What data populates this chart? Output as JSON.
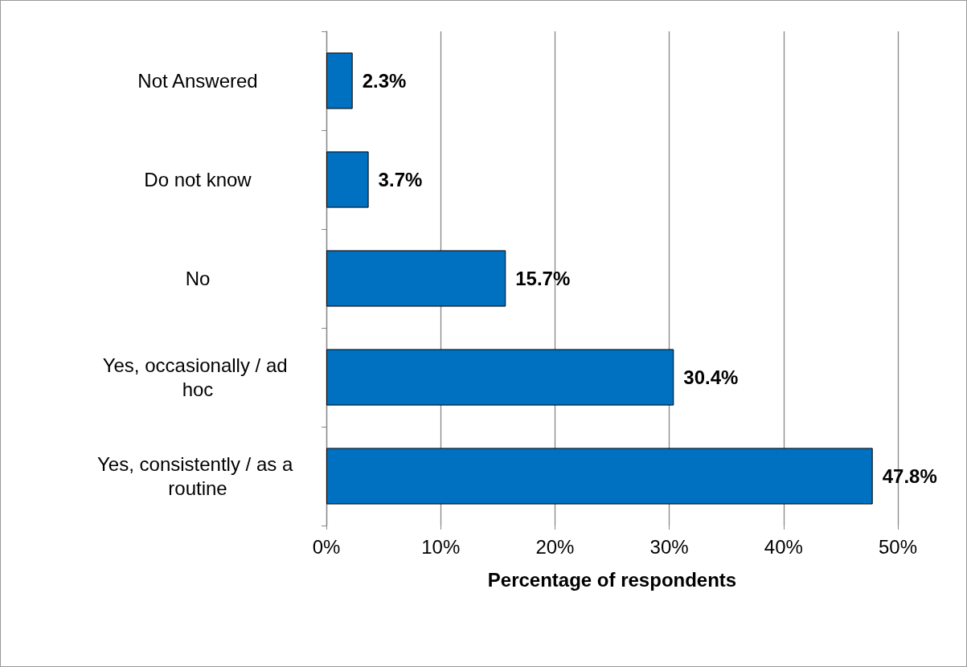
{
  "chart_data": {
    "type": "bar",
    "orientation": "horizontal",
    "xlabel": "Percentage of respondents",
    "categories": [
      "Not Answered",
      "Do not know",
      "No",
      "Yes, occasionally / ad hoc",
      "Yes, consistently / as a routine"
    ],
    "values": [
      2.3,
      3.7,
      15.7,
      30.4,
      47.8
    ],
    "color": "#0070c0",
    "value_labels": [
      "2.3%",
      "3.7%",
      "15.7%",
      "30.4%",
      "47.8%"
    ],
    "xlim": [
      0,
      50
    ],
    "xticks": [
      {
        "value": 0,
        "label": "0%"
      },
      {
        "value": 10,
        "label": "10%"
      },
      {
        "value": 20,
        "label": "20%"
      },
      {
        "value": 30,
        "label": "30%"
      },
      {
        "value": 40,
        "label": "40%"
      },
      {
        "value": 50,
        "label": "50%"
      }
    ],
    "grid": "x"
  }
}
